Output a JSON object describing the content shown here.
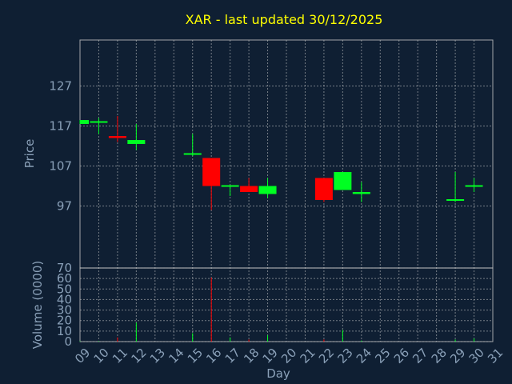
{
  "chart_data": {
    "type": "candlestick",
    "title": "XAR - last updated 30/12/2025",
    "x_label": "Day",
    "y_label_price": "Price",
    "y_label_volume": "Volume (0000)",
    "x_ticks": [
      "09",
      "10",
      "11",
      "12",
      "13",
      "14",
      "15",
      "16",
      "17",
      "18",
      "19",
      "20",
      "21",
      "22",
      "23",
      "24",
      "25",
      "26",
      "27",
      "28",
      "29",
      "30",
      "31"
    ],
    "price_ticks": [
      97,
      107,
      117,
      127
    ],
    "price_range": [
      81.5,
      138.5
    ],
    "volume_ticks": [
      0,
      10,
      20,
      30,
      40,
      50,
      60,
      70
    ],
    "volume_range": [
      0,
      70
    ],
    "colors": {
      "up": "#00ff22",
      "down": "#ff0000",
      "background": "#0f1f33",
      "title": "#ffff00",
      "text": "#8aa0b8"
    },
    "candles": [
      {
        "day": "09",
        "open": 117.5,
        "high": 118.5,
        "low": 117.5,
        "close": 118.5,
        "volume": 0.5
      },
      {
        "day": "10",
        "open": 118,
        "high": 119,
        "low": 115,
        "close": 118,
        "volume": 0.5
      },
      {
        "day": "11",
        "open": 114.5,
        "high": 119.5,
        "low": 113,
        "close": 114,
        "volume": 4
      },
      {
        "day": "12",
        "open": 112.5,
        "high": 117.5,
        "low": 111,
        "close": 113.5,
        "volume": 18
      },
      {
        "day": "15",
        "open": 110,
        "high": 115,
        "low": 109.5,
        "close": 110,
        "volume": 8
      },
      {
        "day": "16",
        "open": 109,
        "high": 109,
        "low": 96,
        "close": 102,
        "volume": 61
      },
      {
        "day": "17",
        "open": 102,
        "high": 102,
        "low": 99.5,
        "close": 102,
        "volume": 4
      },
      {
        "day": "18",
        "open": 102,
        "high": 104,
        "low": 100.5,
        "close": 100.5,
        "volume": 2
      },
      {
        "day": "19",
        "open": 100,
        "high": 104,
        "low": 99,
        "close": 102,
        "volume": 6
      },
      {
        "day": "22",
        "open": 104,
        "high": 104,
        "low": 98,
        "close": 98.5,
        "volume": 2
      },
      {
        "day": "23",
        "open": 101,
        "high": 105.5,
        "low": 101,
        "close": 105.5,
        "volume": 11
      },
      {
        "day": "24",
        "open": 100,
        "high": 103,
        "low": 98,
        "close": 100.5,
        "volume": 1
      },
      {
        "day": "29",
        "open": 98.5,
        "high": 105.5,
        "low": 98,
        "close": 98.5,
        "volume": 2
      },
      {
        "day": "30",
        "open": 102,
        "high": 104,
        "low": 100.5,
        "close": 102,
        "volume": 3
      }
    ]
  }
}
